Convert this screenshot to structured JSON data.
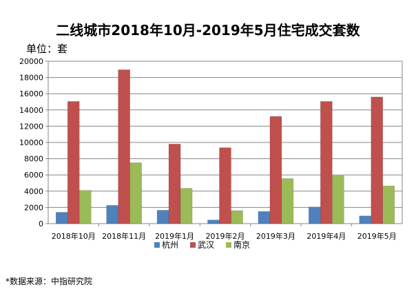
{
  "chart_data": {
    "type": "bar",
    "title": "二线城市2018年10月-2019年5月住宅成交套数",
    "unit_label": "单位：套",
    "categories": [
      "2018年10月",
      "2018年11月",
      "2019年1月",
      "2019年2月",
      "2019年3月",
      "2019年4月",
      "2019年5月"
    ],
    "series": [
      {
        "name": "杭州",
        "color": "#4f81bd",
        "values": [
          1400,
          2250,
          1650,
          450,
          1500,
          2050,
          950
        ]
      },
      {
        "name": "武汉",
        "color": "#c0504d",
        "values": [
          15050,
          18950,
          9800,
          9350,
          13200,
          15050,
          15600
        ]
      },
      {
        "name": "南京",
        "color": "#9bbb59",
        "values": [
          4100,
          7500,
          4350,
          1600,
          5550,
          5900,
          4650
        ]
      }
    ],
    "ylim": [
      0,
      20000
    ],
    "yticks": [
      0,
      2000,
      4000,
      6000,
      8000,
      10000,
      12000,
      14000,
      16000,
      18000,
      20000
    ],
    "grid": true,
    "legend_position": "bottom",
    "source": "*数据来源：中指研究院"
  }
}
